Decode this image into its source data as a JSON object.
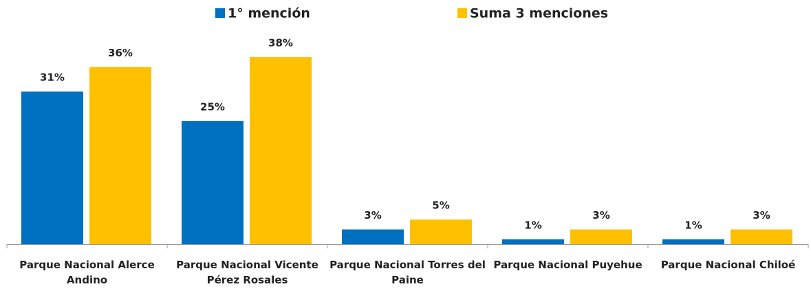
{
  "chart_data": {
    "type": "bar",
    "categories": [
      "Parque Nacional Alerce Andino",
      "Parque Nacional Vicente Pérez Rosales",
      "Parque Nacional Torres del Paine",
      "Parque Nacional Puyehue",
      "Parque Nacional Chiloé"
    ],
    "series": [
      {
        "name": "1° mención",
        "color": "#0070c0",
        "values": [
          31,
          25,
          3,
          1,
          1
        ],
        "value_labels": [
          "31%",
          "25%",
          "3%",
          "1%",
          "1%"
        ]
      },
      {
        "name": "Suma 3 menciones",
        "color": "#ffc000",
        "values": [
          36,
          38,
          5,
          3,
          3
        ],
        "value_labels": [
          "36%",
          "38%",
          "5%",
          "3%",
          "3%"
        ]
      }
    ],
    "legend": "top"
  }
}
